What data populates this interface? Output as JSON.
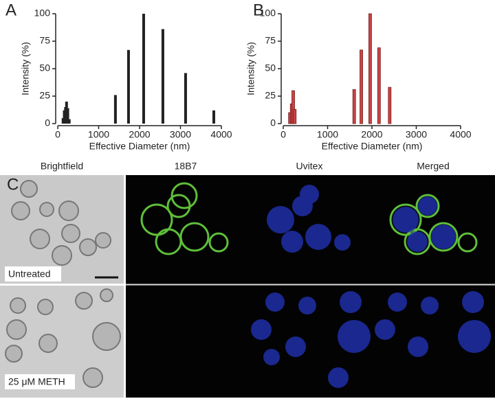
{
  "chart_data": [
    {
      "type": "bar",
      "panel_label": "A",
      "xlabel": "Effective Diameter (nm)",
      "ylabel": "Intensity (%)",
      "x": [
        130,
        160,
        190,
        215,
        245,
        280,
        1410,
        1730,
        2100,
        2570,
        3125,
        3815
      ],
      "values": [
        5,
        12,
        15,
        20,
        14,
        4,
        26,
        67,
        100,
        86,
        46,
        12
      ],
      "color": "#222222",
      "xlim": [
        0,
        4000
      ],
      "xticks": [
        0,
        1000,
        2000,
        3000,
        4000
      ],
      "ylim": [
        0,
        100
      ],
      "yticks": [
        0,
        25,
        50,
        75,
        100
      ]
    },
    {
      "type": "bar",
      "panel_label": "B",
      "xlabel": "Effective Diameter (nm)",
      "ylabel": "Intensity (%)",
      "x": [
        150,
        190,
        225,
        260,
        1600,
        1760,
        1960,
        2160,
        2400
      ],
      "values": [
        10,
        18,
        30,
        13,
        31,
        67,
        100,
        69,
        33
      ],
      "color": "#cc4444",
      "edgecolor": "#6e1c1c",
      "xlim": [
        0,
        4000
      ],
      "xticks": [
        0,
        1000,
        2000,
        3000,
        4000
      ],
      "ylim": [
        0,
        100
      ],
      "yticks": [
        0,
        25,
        50,
        75,
        100
      ]
    }
  ],
  "panel_c": {
    "panel_label": "C",
    "columns": [
      "Brightfield",
      "18B7",
      "Uvitex",
      "Merged"
    ],
    "rows": [
      "Untreated",
      "25 μM METH"
    ]
  }
}
